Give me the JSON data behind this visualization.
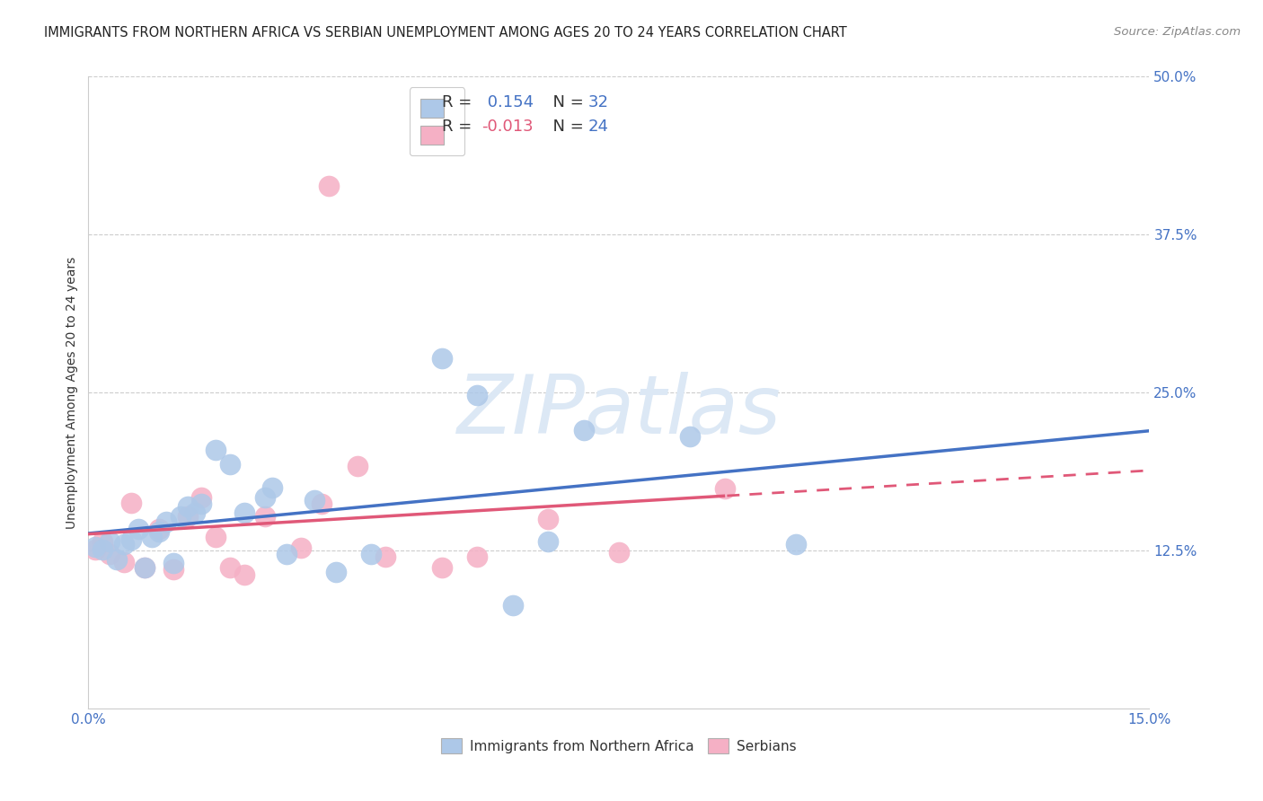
{
  "title": "IMMIGRANTS FROM NORTHERN AFRICA VS SERBIAN UNEMPLOYMENT AMONG AGES 20 TO 24 YEARS CORRELATION CHART",
  "source": "Source: ZipAtlas.com",
  "ylabel": "Unemployment Among Ages 20 to 24 years",
  "xlim": [
    0.0,
    0.15
  ],
  "ylim": [
    0.0,
    0.5
  ],
  "yticks": [
    0.0,
    0.125,
    0.25,
    0.375,
    0.5
  ],
  "ytick_labels": [
    "",
    "12.5%",
    "25.0%",
    "37.5%",
    "50.0%"
  ],
  "xticks": [
    0.0,
    0.025,
    0.05,
    0.075,
    0.1,
    0.125,
    0.15
  ],
  "xtick_labels": [
    "0.0%",
    "",
    "",
    "",
    "",
    "",
    "15.0%"
  ],
  "blue_R": "0.154",
  "blue_N": "32",
  "pink_R": "-0.013",
  "pink_N": "24",
  "blue_scatter_color": "#adc8e8",
  "pink_scatter_color": "#f5b0c5",
  "blue_line_color": "#4472c4",
  "pink_line_color": "#e05878",
  "legend_R_color": "#4472c4",
  "legend_N_color": "#4472c4",
  "legend_label_color": "#333333",
  "watermark": "ZIPatlas",
  "watermark_color": "#dce8f5",
  "blue_points_x": [
    0.001,
    0.002,
    0.003,
    0.004,
    0.005,
    0.006,
    0.007,
    0.008,
    0.009,
    0.01,
    0.011,
    0.012,
    0.013,
    0.014,
    0.015,
    0.016,
    0.018,
    0.02,
    0.022,
    0.025,
    0.026,
    0.028,
    0.032,
    0.035,
    0.04,
    0.05,
    0.055,
    0.06,
    0.065,
    0.07,
    0.085,
    0.1
  ],
  "blue_points_y": [
    0.128,
    0.126,
    0.132,
    0.118,
    0.13,
    0.134,
    0.142,
    0.112,
    0.136,
    0.14,
    0.148,
    0.115,
    0.152,
    0.16,
    0.155,
    0.162,
    0.205,
    0.193,
    0.155,
    0.167,
    0.175,
    0.122,
    0.165,
    0.108,
    0.122,
    0.277,
    0.248,
    0.082,
    0.132,
    0.22,
    0.215,
    0.13
  ],
  "pink_points_x": [
    0.001,
    0.002,
    0.003,
    0.005,
    0.006,
    0.008,
    0.01,
    0.012,
    0.014,
    0.016,
    0.018,
    0.02,
    0.022,
    0.025,
    0.03,
    0.033,
    0.034,
    0.038,
    0.042,
    0.05,
    0.055,
    0.065,
    0.075,
    0.09
  ],
  "pink_points_y": [
    0.126,
    0.132,
    0.122,
    0.116,
    0.163,
    0.112,
    0.142,
    0.11,
    0.152,
    0.167,
    0.136,
    0.112,
    0.106,
    0.152,
    0.127,
    0.162,
    0.413,
    0.192,
    0.12,
    0.112,
    0.12,
    0.15,
    0.124,
    0.174
  ],
  "background_color": "#ffffff",
  "grid_color": "#cccccc",
  "title_fontsize": 10.5,
  "axis_label_fontsize": 10,
  "tick_fontsize": 11,
  "source_fontsize": 9.5,
  "watermark_fontsize": 65
}
